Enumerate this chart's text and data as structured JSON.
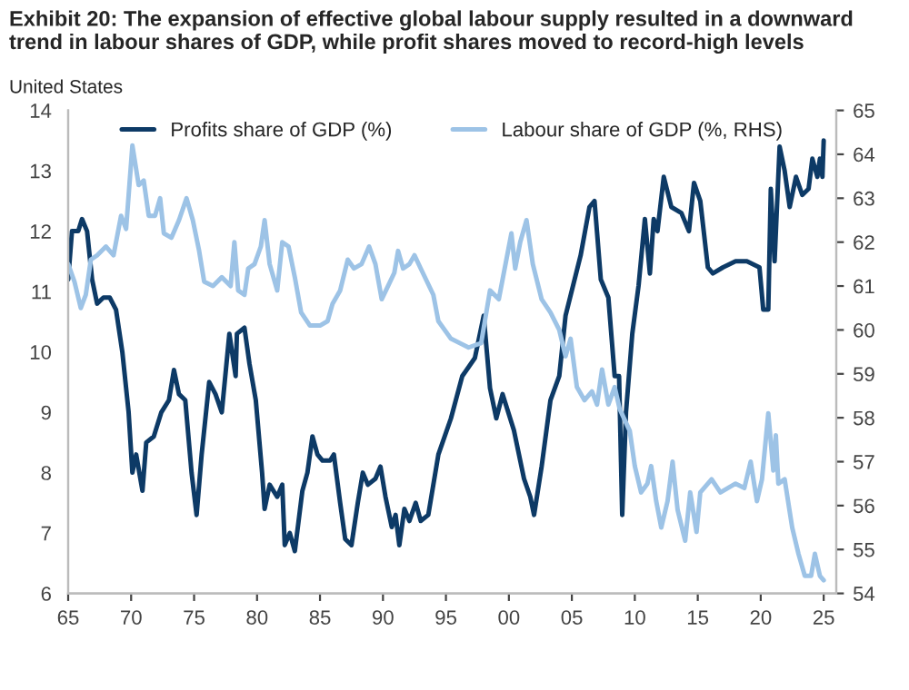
{
  "chart_data": {
    "type": "line",
    "title": "Exhibit 20: The expansion of effective global labour supply resulted in a downward trend in labour shares of GDP, while profit shares moved to record-high levels",
    "subtitle": "United States",
    "xlim": [
      1965,
      2026
    ],
    "xticks": [
      {
        "value": 1965,
        "label": "65"
      },
      {
        "value": 1970,
        "label": "70"
      },
      {
        "value": 1975,
        "label": "75"
      },
      {
        "value": 1980,
        "label": "80"
      },
      {
        "value": 1985,
        "label": "85"
      },
      {
        "value": 1990,
        "label": "90"
      },
      {
        "value": 1995,
        "label": "95"
      },
      {
        "value": 2000,
        "label": "00"
      },
      {
        "value": 2005,
        "label": "05"
      },
      {
        "value": 2010,
        "label": "10"
      },
      {
        "value": 2015,
        "label": "15"
      },
      {
        "value": 2020,
        "label": "20"
      },
      {
        "value": 2025,
        "label": "25"
      }
    ],
    "ylim": [
      6,
      14
    ],
    "yticks": [
      6,
      7,
      8,
      9,
      10,
      11,
      12,
      13,
      14
    ],
    "y2lim": [
      54,
      65
    ],
    "y2ticks": [
      54,
      55,
      56,
      57,
      58,
      59,
      60,
      61,
      62,
      63,
      64,
      65
    ],
    "grid": false,
    "legend": "top",
    "marker": "none",
    "line_style": "solid",
    "series": [
      {
        "name": "Profits share of GDP (%)",
        "color": "#0d3a66",
        "x": [
          1965.0,
          1965.3,
          1965.8,
          1966.1,
          1966.5,
          1966.9,
          1967.3,
          1967.8,
          1968.3,
          1968.8,
          1969.3,
          1969.8,
          1970.1,
          1970.4,
          1970.9,
          1971.2,
          1971.8,
          1972.4,
          1973.0,
          1973.4,
          1973.8,
          1974.3,
          1974.8,
          1975.2,
          1975.6,
          1976.2,
          1976.7,
          1977.2,
          1977.8,
          1978.3,
          1978.4,
          1979.0,
          1979.4,
          1979.9,
          1980.4,
          1980.6,
          1981.0,
          1981.6,
          1982.0,
          1982.2,
          1982.6,
          1983.0,
          1983.6,
          1984.0,
          1984.4,
          1984.8,
          1985.2,
          1985.8,
          1986.1,
          1986.6,
          1987.0,
          1987.5,
          1988.0,
          1988.4,
          1988.8,
          1989.4,
          1989.8,
          1990.2,
          1990.7,
          1991.0,
          1991.3,
          1991.7,
          1992.1,
          1992.6,
          1993.0,
          1993.6,
          1994.4,
          1995.4,
          1996.3,
          1997.3,
          1998.0,
          1998.5,
          1999.0,
          1999.5,
          2000.4,
          2001.2,
          2001.7,
          2002.0,
          2002.6,
          2003.3,
          2004.0,
          2004.5,
          2005.1,
          2005.7,
          2006.4,
          2006.8,
          2007.3,
          2007.9,
          2008.4,
          2008.75,
          2009.0,
          2009.3,
          2009.8,
          2010.3,
          2010.8,
          2011.2,
          2011.5,
          2011.8,
          2012.3,
          2012.9,
          2013.7,
          2014.3,
          2014.7,
          2015.2,
          2015.8,
          2016.2,
          2017.0,
          2018.0,
          2018.9,
          2019.9,
          2020.2,
          2020.6,
          2020.8,
          2021.1,
          2021.5,
          2021.9,
          2022.3,
          2022.8,
          2023.3,
          2023.8,
          2024.1,
          2024.5,
          2024.7,
          2024.9,
          2025.0
        ],
        "values": [
          11.2,
          12.0,
          12.0,
          12.2,
          12.0,
          11.2,
          10.8,
          10.9,
          10.9,
          10.7,
          10.0,
          9.0,
          8.0,
          8.3,
          7.7,
          8.5,
          8.6,
          9.0,
          9.2,
          9.7,
          9.3,
          9.2,
          8.0,
          7.3,
          8.3,
          9.5,
          9.3,
          9.0,
          10.3,
          9.6,
          10.3,
          10.4,
          9.8,
          9.2,
          8.0,
          7.4,
          7.8,
          7.6,
          7.8,
          6.8,
          7.0,
          6.7,
          7.7,
          8.0,
          8.6,
          8.3,
          8.2,
          8.2,
          8.3,
          7.5,
          6.9,
          6.8,
          7.5,
          8.0,
          7.8,
          7.9,
          8.1,
          7.6,
          7.1,
          7.3,
          6.8,
          7.4,
          7.2,
          7.5,
          7.2,
          7.3,
          8.3,
          8.9,
          9.6,
          9.9,
          10.6,
          9.4,
          8.9,
          9.3,
          8.7,
          7.9,
          7.6,
          7.3,
          8.1,
          9.2,
          9.6,
          10.6,
          11.1,
          11.6,
          12.4,
          12.5,
          11.2,
          10.9,
          9.6,
          9.6,
          7.3,
          9.0,
          10.3,
          11.1,
          12.2,
          11.3,
          12.2,
          12.0,
          12.9,
          12.4,
          12.3,
          12.0,
          12.8,
          12.5,
          11.4,
          11.3,
          11.4,
          11.5,
          11.5,
          11.4,
          10.7,
          10.7,
          12.7,
          11.5,
          13.4,
          13.0,
          12.4,
          12.9,
          12.6,
          12.7,
          13.2,
          12.9,
          13.2,
          12.9,
          13.5
        ]
      },
      {
        "name": "Labour share of GDP (%, RHS)",
        "color": "#9dc3e6",
        "axis": "y2",
        "x": [
          1965.0,
          1965.5,
          1966.0,
          1966.4,
          1966.8,
          1967.3,
          1968.0,
          1968.6,
          1969.2,
          1969.6,
          1970.1,
          1970.6,
          1971.0,
          1971.4,
          1971.9,
          1972.3,
          1972.6,
          1973.2,
          1973.8,
          1974.4,
          1974.9,
          1975.4,
          1975.8,
          1976.5,
          1977.2,
          1977.9,
          1978.2,
          1978.5,
          1979.0,
          1979.3,
          1979.8,
          1980.3,
          1980.6,
          1981.0,
          1981.3,
          1981.6,
          1982.0,
          1982.5,
          1983.0,
          1983.5,
          1984.2,
          1985.0,
          1985.6,
          1986.0,
          1986.6,
          1987.2,
          1987.7,
          1988.3,
          1988.9,
          1989.4,
          1989.9,
          1990.4,
          1990.9,
          1991.2,
          1991.6,
          1992.1,
          1992.5,
          1993.0,
          1993.5,
          1994.0,
          1994.4,
          1995.4,
          1996.8,
          1997.8,
          1998.5,
          1999.2,
          2000.2,
          2000.5,
          2000.9,
          2001.4,
          2001.9,
          2002.6,
          2003.3,
          2004.0,
          2004.5,
          2004.9,
          2005.4,
          2006.0,
          2006.6,
          2007.0,
          2007.4,
          2007.9,
          2008.4,
          2008.8,
          2009.6,
          2010.0,
          2010.5,
          2011.0,
          2011.3,
          2011.7,
          2012.1,
          2012.6,
          2013.0,
          2013.4,
          2014.0,
          2014.4,
          2014.9,
          2015.2,
          2016.1,
          2016.8,
          2018.0,
          2018.7,
          2019.2,
          2019.7,
          2020.1,
          2020.6,
          2021.0,
          2021.2,
          2021.4,
          2021.9,
          2022.5,
          2023.0,
          2023.5,
          2024.0,
          2024.3,
          2024.7,
          2025.0
        ],
        "values": [
          61.5,
          61.1,
          60.5,
          60.8,
          61.6,
          61.7,
          61.9,
          61.7,
          62.6,
          62.3,
          64.2,
          63.3,
          63.4,
          62.6,
          62.6,
          63.0,
          62.2,
          62.1,
          62.5,
          63.0,
          62.5,
          61.8,
          61.1,
          61.0,
          61.2,
          61.0,
          62.0,
          60.9,
          60.8,
          61.4,
          61.5,
          61.9,
          62.5,
          61.5,
          61.2,
          60.9,
          62.0,
          61.9,
          61.2,
          60.4,
          60.1,
          60.1,
          60.2,
          60.6,
          60.9,
          61.6,
          61.4,
          61.5,
          61.9,
          61.5,
          60.7,
          61.0,
          61.3,
          61.8,
          61.4,
          61.5,
          61.7,
          61.4,
          61.1,
          60.8,
          60.2,
          59.8,
          59.6,
          59.7,
          60.9,
          60.7,
          62.2,
          61.4,
          62.0,
          62.5,
          61.5,
          60.7,
          60.4,
          60.0,
          59.4,
          59.8,
          58.7,
          58.4,
          58.6,
          58.3,
          59.1,
          58.3,
          58.7,
          58.2,
          57.7,
          56.9,
          56.3,
          56.5,
          56.9,
          56.1,
          55.5,
          56.1,
          57.0,
          55.9,
          55.2,
          56.3,
          55.4,
          56.3,
          56.6,
          56.3,
          56.5,
          56.4,
          57.0,
          56.1,
          56.6,
          58.1,
          56.8,
          57.6,
          56.5,
          56.6,
          55.5,
          54.9,
          54.4,
          54.4,
          54.9,
          54.4,
          54.3
        ]
      }
    ]
  }
}
